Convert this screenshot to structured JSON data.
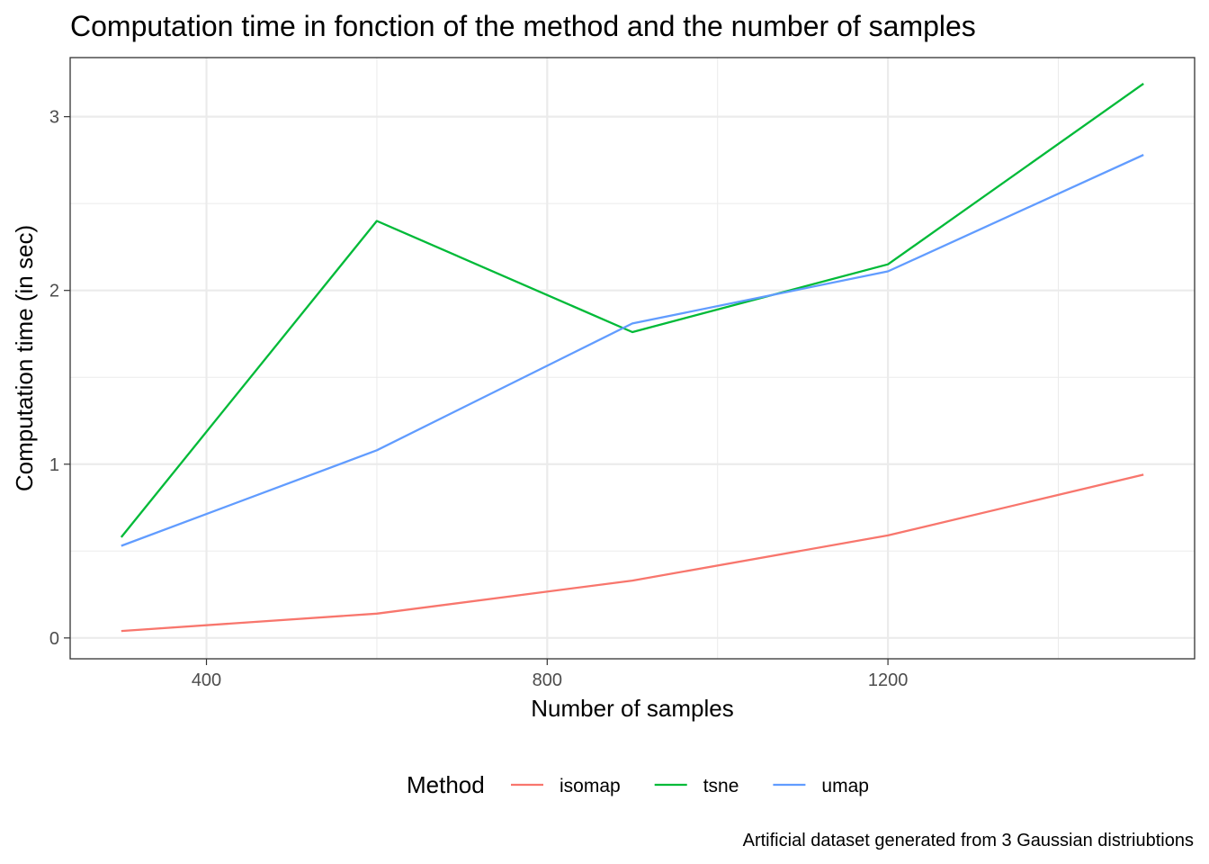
{
  "chart_data": {
    "type": "line",
    "title": "Computation time in fonction of the method and the number of samples",
    "xlabel": "Number of samples",
    "ylabel": "Computation time (in sec)",
    "caption": "Artificial dataset generated from 3 Gaussian distriubtions",
    "legend_title": "Method",
    "legend_position": "bottom",
    "x": [
      300,
      600,
      900,
      1200,
      1500
    ],
    "xlim": [
      240,
      1560
    ],
    "ylim": [
      -0.12,
      3.34
    ],
    "x_ticks": [
      400,
      800,
      1200
    ],
    "x_tick_labels": [
      "400",
      "800",
      "1200"
    ],
    "x_minor_ticks": [
      600,
      1000,
      1400
    ],
    "y_ticks": [
      0,
      1,
      2,
      3
    ],
    "y_tick_labels": [
      "0",
      "1",
      "2",
      "3"
    ],
    "y_minor_ticks": [
      0.5,
      1.5,
      2.5
    ],
    "grid": true,
    "series": [
      {
        "name": "isomap",
        "color": "#F8766D",
        "values": [
          0.04,
          0.14,
          0.33,
          0.59,
          0.94
        ]
      },
      {
        "name": "tsne",
        "color": "#00BA38",
        "values": [
          0.58,
          2.4,
          1.76,
          2.15,
          3.19
        ]
      },
      {
        "name": "umap",
        "color": "#619CFF",
        "values": [
          0.53,
          1.08,
          1.81,
          2.11,
          2.78
        ]
      }
    ]
  }
}
